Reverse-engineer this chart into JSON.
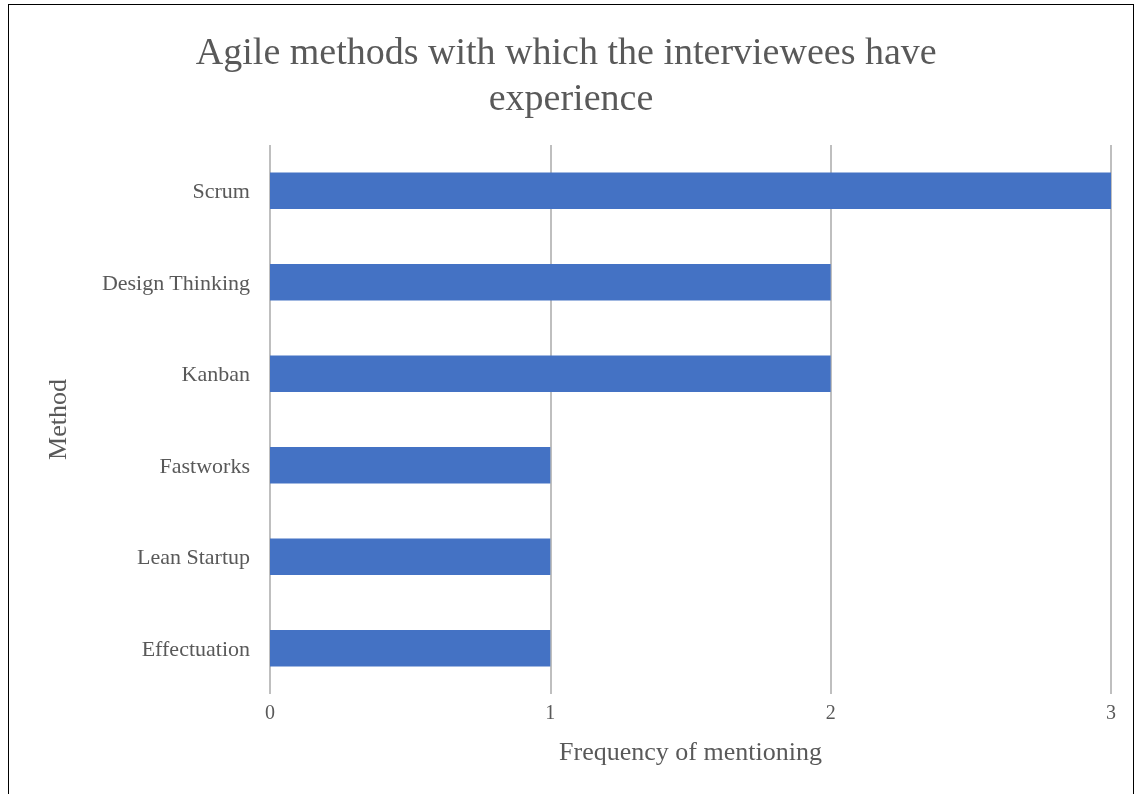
{
  "chart_data": {
    "type": "bar",
    "orientation": "horizontal",
    "title": "Agile methods with which the interviewees have experience",
    "xlabel": "Frequency of mentioning",
    "ylabel": "Method",
    "categories": [
      "Scrum",
      "Design Thinking",
      "Kanban",
      "Fastworks",
      "Lean Startup",
      "Effectuation"
    ],
    "values": [
      3,
      2,
      2,
      1,
      1,
      1
    ],
    "color": "#4472c4",
    "xlim": [
      0,
      3
    ],
    "xticks": [
      0,
      1,
      2,
      3
    ],
    "grid": "x"
  }
}
